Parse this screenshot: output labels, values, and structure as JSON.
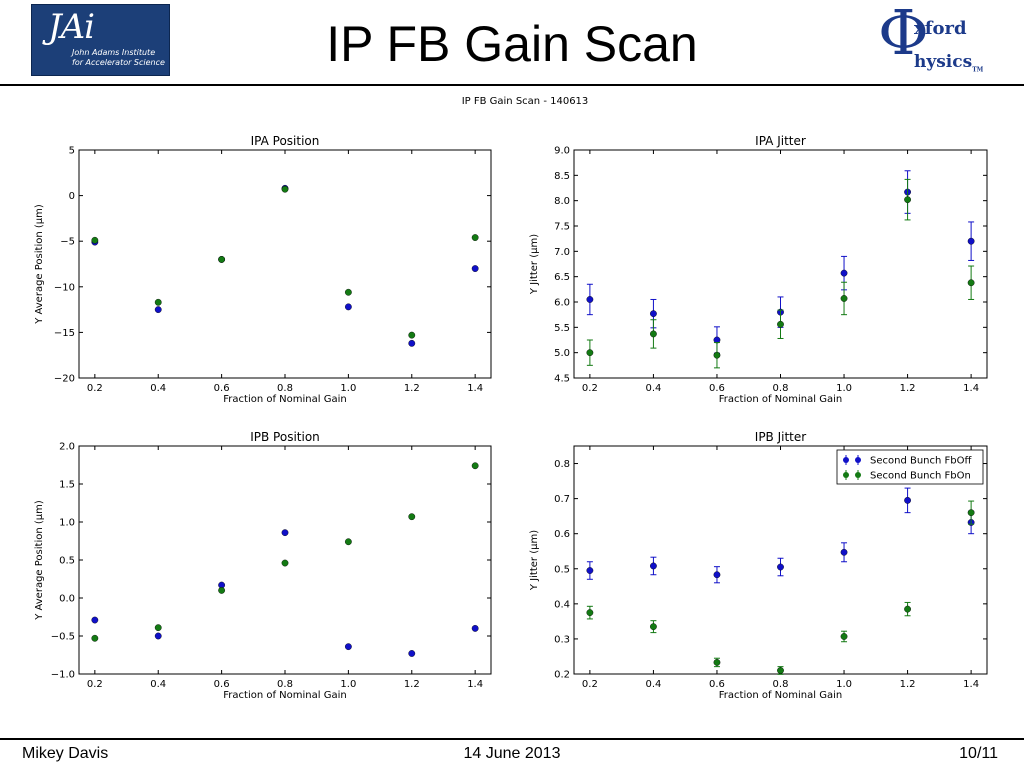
{
  "slide": {
    "title": "IP FB Gain Scan",
    "footer_left": "Mikey Davis",
    "footer_center": "14 June 2013",
    "footer_right": "10/11"
  },
  "logos": {
    "left": {
      "mark": "JAi",
      "line1": "John Adams Institute",
      "line2": "for Accelerator Science",
      "bg": "#1c3f78"
    },
    "right": {
      "line1": "xford",
      "line2": "hysics",
      "tm": "TM",
      "color": "#1c3a8a"
    }
  },
  "figure_title": "IP FB Gain Scan - 140613",
  "colors": {
    "blue": "#1010c8",
    "green": "#137a13"
  },
  "chart_data": [
    {
      "type": "scatter",
      "title": "IPA Position",
      "xlabel": "Fraction of Nominal Gain",
      "ylabel": "Y Average Position (μm)",
      "xlim": [
        0.15,
        1.45
      ],
      "ylim": [
        -20,
        5
      ],
      "xticks": [
        0.2,
        0.4,
        0.6,
        0.8,
        1.0,
        1.2,
        1.4
      ],
      "xtick_labels": [
        "0.2",
        "0.4",
        "0.6",
        "0.8",
        "1.0",
        "1.2",
        "1.4"
      ],
      "yticks": [
        -20,
        -15,
        -10,
        -5,
        0,
        5
      ],
      "ytick_labels": [
        "−20",
        "−15",
        "−10",
        "−5",
        "0",
        "5"
      ],
      "x": [
        0.2,
        0.4,
        0.6,
        0.8,
        1.0,
        1.2,
        1.4
      ],
      "series": [
        {
          "values": [
            -5.1,
            -12.5,
            -7.0,
            0.8,
            -12.2,
            -16.2,
            -8.0
          ],
          "color": "#1010c8"
        },
        {
          "values": [
            -4.9,
            -11.7,
            -7.0,
            0.7,
            -10.6,
            -15.3,
            -4.6
          ],
          "color": "#137a13"
        }
      ]
    },
    {
      "type": "scatter",
      "title": "IPA Jitter",
      "xlabel": "Fraction of Nominal Gain",
      "ylabel": "Y Jitter (μm)",
      "xlim": [
        0.15,
        1.45
      ],
      "ylim": [
        4.5,
        9.0
      ],
      "xticks": [
        0.2,
        0.4,
        0.6,
        0.8,
        1.0,
        1.2,
        1.4
      ],
      "xtick_labels": [
        "0.2",
        "0.4",
        "0.6",
        "0.8",
        "1.0",
        "1.2",
        "1.4"
      ],
      "yticks": [
        4.5,
        5.0,
        5.5,
        6.0,
        6.5,
        7.0,
        7.5,
        8.0,
        8.5,
        9.0
      ],
      "ytick_labels": [
        "4.5",
        "5.0",
        "5.5",
        "6.0",
        "6.5",
        "7.0",
        "7.5",
        "8.0",
        "8.5",
        "9.0"
      ],
      "x": [
        0.2,
        0.4,
        0.6,
        0.8,
        1.0,
        1.2,
        1.4
      ],
      "series": [
        {
          "values": [
            6.05,
            5.77,
            5.25,
            5.8,
            6.57,
            8.17,
            7.2
          ],
          "errors": [
            0.3,
            0.28,
            0.26,
            0.3,
            0.33,
            0.42,
            0.38
          ],
          "color": "#1010c8"
        },
        {
          "values": [
            5.0,
            5.37,
            4.95,
            5.56,
            6.07,
            8.02,
            6.38
          ],
          "errors": [
            0.25,
            0.28,
            0.25,
            0.28,
            0.32,
            0.4,
            0.33
          ],
          "color": "#137a13"
        }
      ]
    },
    {
      "type": "scatter",
      "title": "IPB Position",
      "xlabel": "Fraction of Nominal Gain",
      "ylabel": "Y Average Position (μm)",
      "xlim": [
        0.15,
        1.45
      ],
      "ylim": [
        -1.0,
        2.0
      ],
      "xticks": [
        0.2,
        0.4,
        0.6,
        0.8,
        1.0,
        1.2,
        1.4
      ],
      "xtick_labels": [
        "0.2",
        "0.4",
        "0.6",
        "0.8",
        "1.0",
        "1.2",
        "1.4"
      ],
      "yticks": [
        -1.0,
        -0.5,
        0.0,
        0.5,
        1.0,
        1.5,
        2.0
      ],
      "ytick_labels": [
        "−1.0",
        "−0.5",
        "0.0",
        "0.5",
        "1.0",
        "1.5",
        "2.0"
      ],
      "x": [
        0.2,
        0.4,
        0.6,
        0.8,
        1.0,
        1.2,
        1.4
      ],
      "series": [
        {
          "values": [
            -0.29,
            -0.5,
            0.17,
            0.86,
            -0.64,
            -0.73,
            -0.4
          ],
          "color": "#1010c8"
        },
        {
          "values": [
            -0.53,
            -0.39,
            0.1,
            0.46,
            0.74,
            1.07,
            1.74
          ],
          "color": "#137a13"
        }
      ]
    },
    {
      "type": "scatter",
      "title": "IPB Jitter",
      "xlabel": "Fraction of Nominal Gain",
      "ylabel": "Y Jitter (μm)",
      "xlim": [
        0.15,
        1.45
      ],
      "ylim": [
        0.2,
        0.85
      ],
      "xticks": [
        0.2,
        0.4,
        0.6,
        0.8,
        1.0,
        1.2,
        1.4
      ],
      "xtick_labels": [
        "0.2",
        "0.4",
        "0.6",
        "0.8",
        "1.0",
        "1.2",
        "1.4"
      ],
      "yticks": [
        0.2,
        0.3,
        0.4,
        0.5,
        0.6,
        0.7,
        0.8
      ],
      "ytick_labels": [
        "0.2",
        "0.3",
        "0.4",
        "0.5",
        "0.6",
        "0.7",
        "0.8"
      ],
      "x": [
        0.2,
        0.4,
        0.6,
        0.8,
        1.0,
        1.2,
        1.4
      ],
      "legend": {
        "position": "upper-right",
        "entries": [
          "Second Bunch FbOff",
          "Second Bunch FbOn"
        ]
      },
      "series": [
        {
          "name": "Second Bunch FbOff",
          "values": [
            0.495,
            0.508,
            0.483,
            0.505,
            0.547,
            0.695,
            0.632
          ],
          "errors": [
            0.025,
            0.025,
            0.023,
            0.025,
            0.027,
            0.035,
            0.032
          ],
          "color": "#1010c8"
        },
        {
          "name": "Second Bunch FbOn",
          "values": [
            0.375,
            0.335,
            0.233,
            0.21,
            0.307,
            0.385,
            0.66
          ],
          "errors": [
            0.018,
            0.017,
            0.012,
            0.011,
            0.015,
            0.019,
            0.033
          ],
          "color": "#137a13"
        }
      ]
    }
  ]
}
